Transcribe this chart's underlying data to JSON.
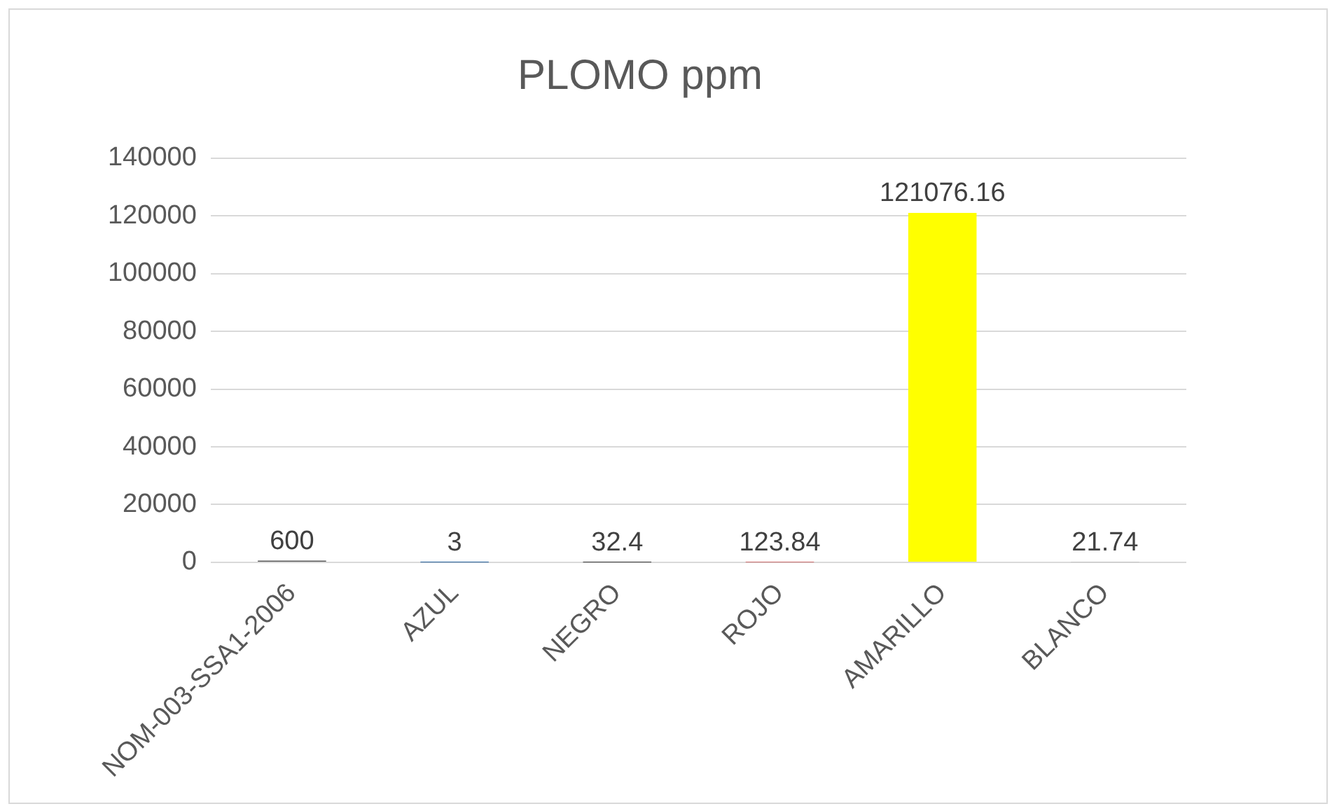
{
  "chart_data": {
    "type": "bar",
    "title": "PLOMO ppm",
    "categories": [
      "NOM-003-SSA1-2006",
      "AZUL",
      "NEGRO",
      "ROJO",
      "AMARILLO",
      "BLANCO"
    ],
    "values": [
      600,
      3,
      32.4,
      123.84,
      121076.16,
      21.74
    ],
    "colors": [
      "#595959",
      "#1f5c99",
      "#000000",
      "#c00000",
      "#ffff00",
      "#bfbfbf"
    ],
    "ylim": [
      0,
      140000
    ],
    "yticks": [
      0,
      20000,
      40000,
      60000,
      80000,
      100000,
      120000,
      140000
    ],
    "grid": "y",
    "data_labels": true
  }
}
